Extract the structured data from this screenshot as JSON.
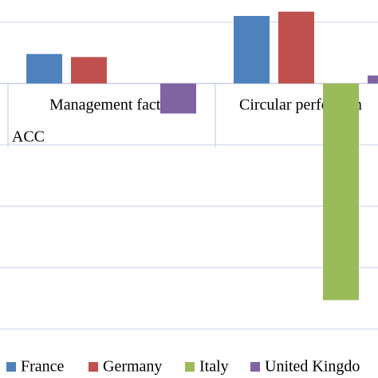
{
  "chart_data": {
    "type": "bar",
    "categories": [
      "ACC",
      "Management factor",
      "Circular performan"
    ],
    "series": [
      {
        "name": "France",
        "color": "#4f81bd",
        "values": [
          null,
          0.48,
          1.1
        ]
      },
      {
        "name": "Germany",
        "color": "#c0504d",
        "values": [
          null,
          0.43,
          1.17
        ]
      },
      {
        "name": "Italy",
        "color": "#9bbb59",
        "values": [
          null,
          null,
          -3.53
        ]
      },
      {
        "name": "United Kingdo",
        "color": "#8064a2",
        "values": [
          null,
          -0.49,
          0.13
        ]
      }
    ],
    "ylim": [
      -4.5,
      1.36
    ],
    "yticks": [
      -4,
      -3,
      -2,
      -1,
      0,
      1
    ],
    "grid": true
  }
}
